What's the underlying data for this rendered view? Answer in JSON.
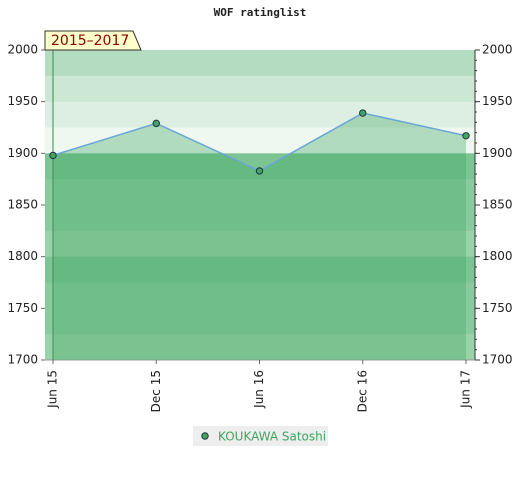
{
  "chart_data": {
    "type": "line",
    "title": "WOF ratinglist",
    "annotation": "2015–2017",
    "categories": [
      "Jun 15",
      "Dec 15",
      "Jun 16",
      "Dec 16",
      "Jun 17"
    ],
    "series": [
      {
        "name": "KOUKAWA Satoshi",
        "color": "#3fa561",
        "line_color": "#6aa6d6",
        "values": [
          1898,
          1929,
          1883,
          1939,
          1917
        ]
      }
    ],
    "ylim": [
      1700,
      2000
    ],
    "yticks": [
      1700,
      1750,
      1800,
      1850,
      1900,
      1950,
      2000
    ],
    "y2lim": [
      1700,
      2000
    ],
    "y2ticks": [
      1700,
      1750,
      1800,
      1850,
      1900,
      1950,
      2000
    ],
    "legend": "bottom"
  }
}
